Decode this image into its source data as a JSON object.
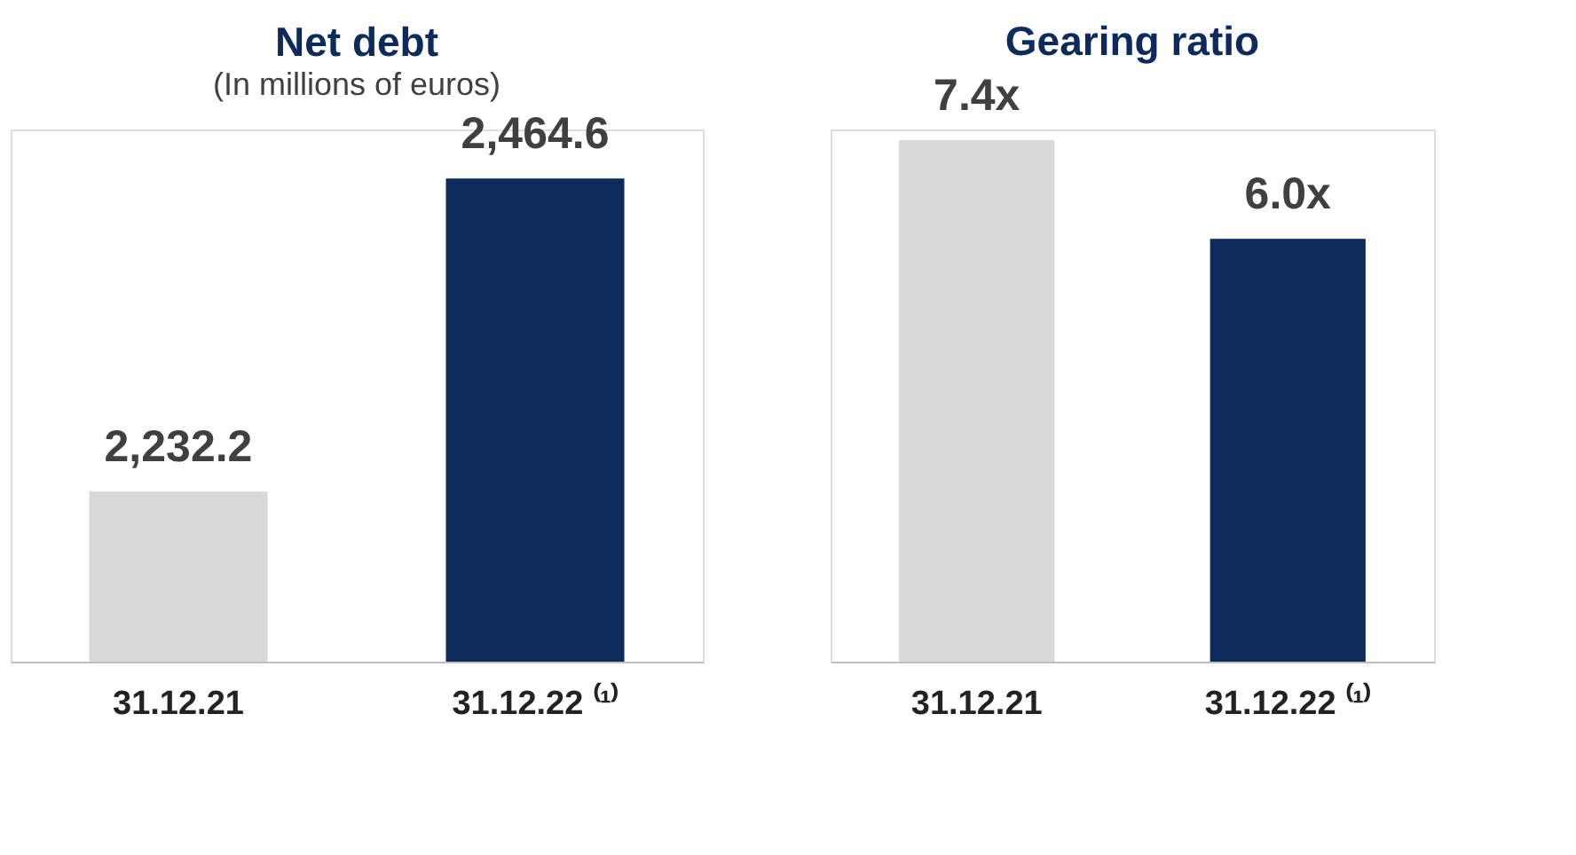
{
  "chart_data": [
    {
      "type": "bar",
      "title": "Net debt",
      "subtitle": "(In millions of euros)",
      "categories": [
        "31.12.21",
        "31.12.22 ⁽¹⁾"
      ],
      "values": [
        2232.2,
        2464.6
      ],
      "colors": [
        "#d9d9d9",
        "#0c2a5b"
      ],
      "value_labels": [
        "2,232.2",
        "2,464.6"
      ],
      "ylim": [
        2106,
        2501
      ],
      "tick_labels": "x"
    },
    {
      "type": "bar",
      "title": "Gearing ratio",
      "categories": [
        "31.12.21",
        "31.12.22 ⁽¹⁾"
      ],
      "values": [
        7.4,
        6.0
      ],
      "colors": [
        "#d9d9d9",
        "#0c2a5b"
      ],
      "value_labels": [
        "7.4x",
        "6.0x"
      ],
      "ylim": [
        0,
        7.55
      ],
      "tick_labels": "x"
    }
  ]
}
